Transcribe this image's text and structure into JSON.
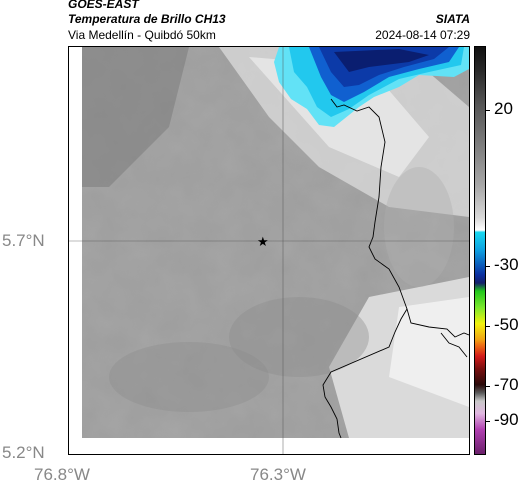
{
  "header": {
    "satellite": "GOES-EAST",
    "product": "Temperatura de Brillo CH13",
    "subtitle": "Via Medellín - Quibdó 50km",
    "organization": "SIATA",
    "datetime": "2024-08-14 07:29"
  },
  "map": {
    "y_axis_labels": [
      "5.7°N",
      "5.2°N"
    ],
    "x_axis_labels": [
      "76.8°W",
      "76.3°W"
    ],
    "colorbar_ticks": [
      "20",
      "-30",
      "-50",
      "-70",
      "-90"
    ],
    "colorbar_colors": {
      "top": "#101010",
      "mid_gray": "#9a9a9a",
      "white": "#ffffff",
      "cyan": "#18d8f0",
      "blue": "#0b2fa0",
      "green": "#22c81c",
      "yellow": "#f2f20e",
      "orange": "#f07814",
      "red": "#d21a1a",
      "dark": "#2a0a0a",
      "magenta": "#b040b0"
    },
    "cloud_colors": {
      "cold_core": "#0a1e70",
      "deep_blue": "#0c3aa8",
      "blue": "#1060d0",
      "cyan": "#22c8ee",
      "light_cyan": "#62e2f6"
    },
    "marker": "star-marker"
  }
}
